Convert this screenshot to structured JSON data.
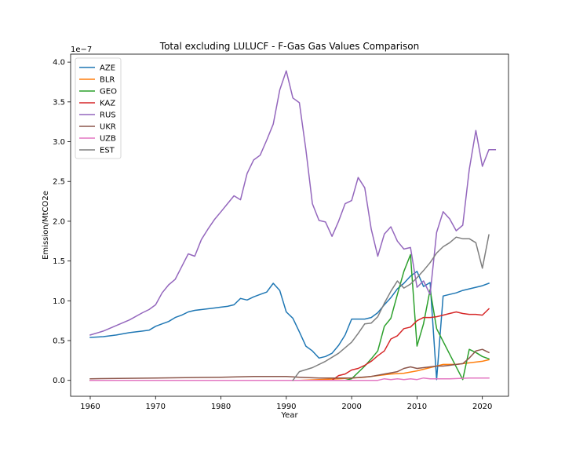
{
  "chart_data": {
    "type": "line",
    "title": "Total excluding LULUCF - F-Gas Gas Values Comparison",
    "xlabel": "Year",
    "ylabel": "Emission/MtCO2e",
    "y_offset_text": "1e−7",
    "y_scale_factor": 1e-07,
    "xlim": [
      1957,
      2024
    ],
    "ylim": [
      -0.2,
      4.1
    ],
    "xticks": [
      1960,
      1970,
      1980,
      1990,
      2000,
      2010,
      2020
    ],
    "xtick_labels": [
      "1960",
      "1970",
      "1980",
      "1990",
      "2000",
      "2010",
      "2020"
    ],
    "yticks": [
      0.0,
      0.5,
      1.0,
      1.5,
      2.0,
      2.5,
      3.0,
      3.5,
      4.0
    ],
    "ytick_labels": [
      "0.0",
      "0.5",
      "1.0",
      "1.5",
      "2.0",
      "2.5",
      "3.0",
      "3.5",
      "4.0"
    ],
    "grid": false,
    "legend_position": "top-left",
    "series": [
      {
        "name": "AZE",
        "color": "#1f77b4",
        "points": [
          [
            1960,
            0.54
          ],
          [
            1962,
            0.55
          ],
          [
            1964,
            0.57
          ],
          [
            1966,
            0.6
          ],
          [
            1968,
            0.62
          ],
          [
            1969,
            0.63
          ],
          [
            1970,
            0.68
          ],
          [
            1971,
            0.71
          ],
          [
            1972,
            0.74
          ],
          [
            1973,
            0.79
          ],
          [
            1974,
            0.82
          ],
          [
            1975,
            0.86
          ],
          [
            1976,
            0.88
          ],
          [
            1977,
            0.89
          ],
          [
            1978,
            0.9
          ],
          [
            1979,
            0.91
          ],
          [
            1980,
            0.92
          ],
          [
            1981,
            0.93
          ],
          [
            1982,
            0.95
          ],
          [
            1983,
            1.03
          ],
          [
            1984,
            1.01
          ],
          [
            1985,
            1.05
          ],
          [
            1986,
            1.08
          ],
          [
            1987,
            1.11
          ],
          [
            1988,
            1.22
          ],
          [
            1989,
            1.13
          ],
          [
            1990,
            0.86
          ],
          [
            1991,
            0.78
          ],
          [
            1992,
            0.61
          ],
          [
            1993,
            0.43
          ],
          [
            1994,
            0.37
          ],
          [
            1995,
            0.28
          ],
          [
            1996,
            0.3
          ],
          [
            1997,
            0.34
          ],
          [
            1998,
            0.44
          ],
          [
            1999,
            0.57
          ],
          [
            2000,
            0.77
          ],
          [
            2001,
            0.77
          ],
          [
            2002,
            0.77
          ],
          [
            2003,
            0.79
          ],
          [
            2004,
            0.85
          ],
          [
            2005,
            0.95
          ],
          [
            2006,
            1.04
          ],
          [
            2007,
            1.15
          ],
          [
            2008,
            1.22
          ],
          [
            2009,
            1.31
          ],
          [
            2010,
            1.37
          ],
          [
            2011,
            1.18
          ],
          [
            2012,
            1.23
          ],
          [
            2013,
            0.01
          ],
          [
            2014,
            1.06
          ],
          [
            2015,
            1.08
          ],
          [
            2016,
            1.1
          ],
          [
            2017,
            1.13
          ],
          [
            2018,
            1.15
          ],
          [
            2019,
            1.17
          ],
          [
            2020,
            1.19
          ],
          [
            2021,
            1.22
          ]
        ]
      },
      {
        "name": "BLR",
        "color": "#ff7f0e",
        "points": [
          [
            1960,
            0.0
          ],
          [
            1992,
            0.0
          ],
          [
            1995,
            0.01
          ],
          [
            1998,
            0.02
          ],
          [
            2000,
            0.03
          ],
          [
            2002,
            0.04
          ],
          [
            2004,
            0.06
          ],
          [
            2006,
            0.08
          ],
          [
            2008,
            0.09
          ],
          [
            2010,
            0.12
          ],
          [
            2012,
            0.16
          ],
          [
            2014,
            0.2
          ],
          [
            2016,
            0.2
          ],
          [
            2018,
            0.22
          ],
          [
            2020,
            0.24
          ],
          [
            2021,
            0.26
          ]
        ]
      },
      {
        "name": "GEO",
        "color": "#2ca02c",
        "points": [
          [
            1960,
            0.0
          ],
          [
            1999,
            0.0
          ],
          [
            2000,
            0.02
          ],
          [
            2001,
            0.1
          ],
          [
            2002,
            0.18
          ],
          [
            2003,
            0.27
          ],
          [
            2004,
            0.37
          ],
          [
            2005,
            0.68
          ],
          [
            2006,
            0.78
          ],
          [
            2007,
            1.08
          ],
          [
            2008,
            1.37
          ],
          [
            2009,
            1.58
          ],
          [
            2010,
            0.43
          ],
          [
            2011,
            0.71
          ],
          [
            2012,
            1.14
          ],
          [
            2013,
            0.65
          ],
          [
            2015,
            0.33
          ],
          [
            2017,
            0.01
          ],
          [
            2018,
            0.39
          ],
          [
            2019,
            0.35
          ],
          [
            2020,
            0.3
          ],
          [
            2021,
            0.27
          ]
        ]
      },
      {
        "name": "KAZ",
        "color": "#d62728",
        "points": [
          [
            1960,
            0.0
          ],
          [
            1997,
            0.0
          ],
          [
            1998,
            0.06
          ],
          [
            1999,
            0.08
          ],
          [
            2000,
            0.13
          ],
          [
            2001,
            0.15
          ],
          [
            2002,
            0.19
          ],
          [
            2003,
            0.24
          ],
          [
            2004,
            0.31
          ],
          [
            2005,
            0.37
          ],
          [
            2006,
            0.52
          ],
          [
            2007,
            0.56
          ],
          [
            2008,
            0.65
          ],
          [
            2009,
            0.67
          ],
          [
            2010,
            0.75
          ],
          [
            2011,
            0.79
          ],
          [
            2012,
            0.79
          ],
          [
            2013,
            0.8
          ],
          [
            2014,
            0.82
          ],
          [
            2015,
            0.84
          ],
          [
            2016,
            0.86
          ],
          [
            2017,
            0.84
          ],
          [
            2018,
            0.83
          ],
          [
            2019,
            0.83
          ],
          [
            2020,
            0.82
          ],
          [
            2021,
            0.9
          ]
        ]
      },
      {
        "name": "RUS",
        "color": "#9467bd",
        "points": [
          [
            1960,
            0.57
          ],
          [
            1962,
            0.62
          ],
          [
            1964,
            0.69
          ],
          [
            1966,
            0.76
          ],
          [
            1968,
            0.85
          ],
          [
            1969,
            0.89
          ],
          [
            1970,
            0.95
          ],
          [
            1971,
            1.1
          ],
          [
            1972,
            1.2
          ],
          [
            1973,
            1.27
          ],
          [
            1974,
            1.43
          ],
          [
            1975,
            1.59
          ],
          [
            1976,
            1.56
          ],
          [
            1977,
            1.77
          ],
          [
            1978,
            1.9
          ],
          [
            1979,
            2.02
          ],
          [
            1980,
            2.12
          ],
          [
            1981,
            2.22
          ],
          [
            1982,
            2.32
          ],
          [
            1983,
            2.27
          ],
          [
            1984,
            2.6
          ],
          [
            1985,
            2.77
          ],
          [
            1986,
            2.83
          ],
          [
            1987,
            3.02
          ],
          [
            1988,
            3.22
          ],
          [
            1989,
            3.65
          ],
          [
            1990,
            3.89
          ],
          [
            1991,
            3.55
          ],
          [
            1992,
            3.49
          ],
          [
            1993,
            2.9
          ],
          [
            1994,
            2.22
          ],
          [
            1995,
            2.01
          ],
          [
            1996,
            1.99
          ],
          [
            1997,
            1.81
          ],
          [
            1998,
            2.0
          ],
          [
            1999,
            2.22
          ],
          [
            2000,
            2.26
          ],
          [
            2001,
            2.55
          ],
          [
            2002,
            2.42
          ],
          [
            2003,
            1.9
          ],
          [
            2004,
            1.56
          ],
          [
            2005,
            1.84
          ],
          [
            2006,
            1.93
          ],
          [
            2007,
            1.75
          ],
          [
            2008,
            1.65
          ],
          [
            2009,
            1.67
          ],
          [
            2010,
            1.17
          ],
          [
            2011,
            1.25
          ],
          [
            2012,
            1.08
          ],
          [
            2013,
            1.86
          ],
          [
            2014,
            2.12
          ],
          [
            2015,
            2.03
          ],
          [
            2016,
            1.88
          ],
          [
            2017,
            1.95
          ],
          [
            2018,
            2.65
          ],
          [
            2019,
            3.14
          ],
          [
            2020,
            2.69
          ],
          [
            2021,
            2.9
          ],
          [
            2022,
            2.9
          ]
        ]
      },
      {
        "name": "UKR",
        "color": "#8c564b",
        "points": [
          [
            1960,
            0.02
          ],
          [
            1970,
            0.03
          ],
          [
            1980,
            0.04
          ],
          [
            1985,
            0.05
          ],
          [
            1990,
            0.05
          ],
          [
            1992,
            0.04
          ],
          [
            1995,
            0.03
          ],
          [
            2000,
            0.03
          ],
          [
            2003,
            0.05
          ],
          [
            2005,
            0.08
          ],
          [
            2007,
            0.11
          ],
          [
            2008,
            0.15
          ],
          [
            2009,
            0.17
          ],
          [
            2010,
            0.15
          ],
          [
            2011,
            0.16
          ],
          [
            2012,
            0.17
          ],
          [
            2013,
            0.18
          ],
          [
            2014,
            0.18
          ],
          [
            2015,
            0.19
          ],
          [
            2016,
            0.2
          ],
          [
            2017,
            0.21
          ],
          [
            2018,
            0.28
          ],
          [
            2019,
            0.37
          ],
          [
            2020,
            0.39
          ],
          [
            2021,
            0.35
          ]
        ]
      },
      {
        "name": "UZB",
        "color": "#e377c2",
        "points": [
          [
            1960,
            0.0
          ],
          [
            2004,
            0.0
          ],
          [
            2005,
            0.02
          ],
          [
            2006,
            0.01
          ],
          [
            2007,
            0.02
          ],
          [
            2008,
            0.01
          ],
          [
            2009,
            0.02
          ],
          [
            2010,
            0.01
          ],
          [
            2011,
            0.03
          ],
          [
            2012,
            0.02
          ],
          [
            2013,
            0.02
          ],
          [
            2015,
            0.02
          ],
          [
            2018,
            0.03
          ],
          [
            2021,
            0.03
          ]
        ]
      },
      {
        "name": "EST",
        "color": "#7f7f7f",
        "points": [
          [
            1991,
            0.0
          ],
          [
            1992,
            0.11
          ],
          [
            1994,
            0.16
          ],
          [
            1996,
            0.24
          ],
          [
            1998,
            0.34
          ],
          [
            2000,
            0.48
          ],
          [
            2001,
            0.59
          ],
          [
            2002,
            0.71
          ],
          [
            2003,
            0.72
          ],
          [
            2004,
            0.8
          ],
          [
            2005,
            0.97
          ],
          [
            2006,
            1.12
          ],
          [
            2007,
            1.25
          ],
          [
            2008,
            1.16
          ],
          [
            2009,
            1.21
          ],
          [
            2010,
            1.29
          ],
          [
            2011,
            1.38
          ],
          [
            2012,
            1.48
          ],
          [
            2013,
            1.6
          ],
          [
            2014,
            1.68
          ],
          [
            2015,
            1.73
          ],
          [
            2016,
            1.8
          ],
          [
            2017,
            1.78
          ],
          [
            2018,
            1.78
          ],
          [
            2019,
            1.73
          ],
          [
            2020,
            1.41
          ],
          [
            2021,
            1.83
          ]
        ]
      }
    ]
  }
}
